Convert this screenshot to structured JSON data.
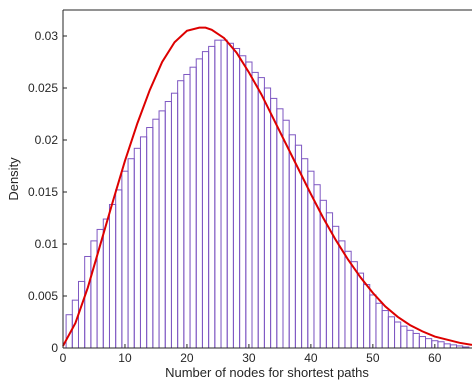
{
  "chart_data": {
    "type": "bar",
    "xlabel": "Number of nodes for shortest paths",
    "ylabel": "Density",
    "xlim": [
      0,
      66
    ],
    "ylim": [
      0,
      0.0325
    ],
    "x_ticks": [
      "0",
      "10",
      "20",
      "30",
      "40",
      "50",
      "60"
    ],
    "y_ticks": [
      "0",
      "0.005",
      "0.01",
      "0.015",
      "0.02",
      "0.025",
      "0.03"
    ],
    "grid": false,
    "series": [
      {
        "type": "histogram",
        "bin_width": 1,
        "color": "#7E57C2",
        "x": [
          1,
          2,
          3,
          4,
          5,
          6,
          7,
          8,
          9,
          10,
          11,
          12,
          13,
          14,
          15,
          16,
          17,
          18,
          19,
          20,
          21,
          22,
          23,
          24,
          25,
          26,
          27,
          28,
          29,
          30,
          31,
          32,
          33,
          34,
          35,
          36,
          37,
          38,
          39,
          40,
          41,
          42,
          43,
          44,
          45,
          46,
          47,
          48,
          49,
          50,
          51,
          52,
          53,
          54,
          55,
          56,
          57,
          58,
          59,
          60,
          61,
          62,
          63,
          64,
          65
        ],
        "values": [
          0.0032,
          0.0046,
          0.0064,
          0.0088,
          0.0103,
          0.0114,
          0.0124,
          0.0138,
          0.0152,
          0.017,
          0.0182,
          0.0192,
          0.0203,
          0.0212,
          0.022,
          0.0228,
          0.0237,
          0.0245,
          0.0257,
          0.0263,
          0.027,
          0.0278,
          0.0285,
          0.029,
          0.0296,
          0.0296,
          0.0293,
          0.0288,
          0.0281,
          0.0275,
          0.0265,
          0.026,
          0.025,
          0.024,
          0.023,
          0.0219,
          0.0205,
          0.0195,
          0.0182,
          0.017,
          0.0157,
          0.0142,
          0.013,
          0.0117,
          0.0103,
          0.0093,
          0.0083,
          0.0072,
          0.0061,
          0.0051,
          0.0043,
          0.0036,
          0.003,
          0.0025,
          0.0021,
          0.0017,
          0.0014,
          0.0011,
          0.0009,
          0.0007,
          0.0006,
          0.0004,
          0.0003,
          0.0002,
          0.0001
        ]
      },
      {
        "type": "line",
        "color": "#DD0000",
        "x": [
          0,
          2,
          4,
          6,
          8,
          10,
          12,
          14,
          16,
          18,
          20,
          22,
          23,
          24,
          26,
          28,
          30,
          32,
          34,
          36,
          38,
          40,
          42,
          44,
          46,
          48,
          50,
          52,
          54,
          56,
          58,
          60,
          62,
          64,
          66
        ],
        "values": [
          0.0002,
          0.0024,
          0.0058,
          0.0099,
          0.014,
          0.018,
          0.0216,
          0.0248,
          0.0275,
          0.0294,
          0.0305,
          0.0308,
          0.0308,
          0.0306,
          0.0298,
          0.0284,
          0.0265,
          0.0244,
          0.022,
          0.0196,
          0.0172,
          0.0148,
          0.0125,
          0.0104,
          0.0085,
          0.0068,
          0.0053,
          0.004,
          0.003,
          0.0022,
          0.0016,
          0.0011,
          0.0008,
          0.0005,
          0.0003
        ]
      }
    ]
  }
}
